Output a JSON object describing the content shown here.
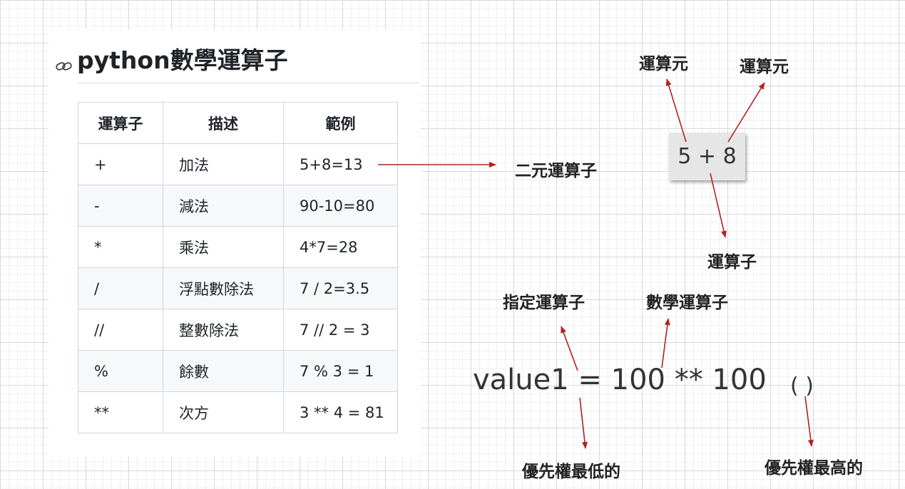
{
  "doc": {
    "title": "python數學運算子"
  },
  "table": {
    "headers": [
      "運算子",
      "描述",
      "範例"
    ],
    "rows": [
      [
        "+",
        "加法",
        "5+8=13"
      ],
      [
        "-",
        "減法",
        "90-10=80"
      ],
      [
        "*",
        "乘法",
        "4*7=28"
      ],
      [
        "/",
        "浮點數除法",
        "7 / 2=3.5"
      ],
      [
        "//",
        "整數除法",
        "7 // 2 = 3"
      ],
      [
        "%",
        "餘數",
        "7 % 3 = 1"
      ],
      [
        "**",
        "次方",
        "3 ** 4 = 81"
      ]
    ]
  },
  "diagram": {
    "binary_operator_label": "二元運算子",
    "expression": "5 + 8",
    "operand_label_left": "運算元",
    "operand_label_right": "運算元",
    "operator_label": "運算子",
    "assignment_label": "指定運算子",
    "math_operator_label": "數學運算子",
    "big_expression": "value1 = 100 ** 100",
    "parens": "(   )",
    "lowest_priority_label": "優先權最低的",
    "highest_priority_label": "優先權最高的"
  },
  "colors": {
    "arrow": "#b22222",
    "table_border": "#d0d7de",
    "alt_row": "#f6f8fa"
  }
}
